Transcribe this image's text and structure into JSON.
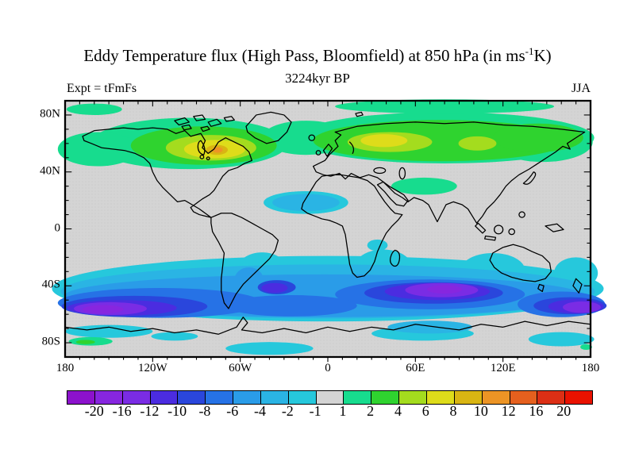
{
  "figure": {
    "title_prefix": "Eddy Temperature flux (High Pass, Bloomfield) at 850 hPa (in ms",
    "title_sup": "-1",
    "title_suffix": "K)",
    "subtitle": "3224kyr BP",
    "experiment_label": "Expt = tFmFs",
    "season_label": "JJA"
  },
  "axes": {
    "lat_labels": [
      "80N",
      "40N",
      "0",
      "40S",
      "80S"
    ],
    "lon_labels": [
      "180",
      "120W",
      "60W",
      "0",
      "60E",
      "120E",
      "180"
    ]
  },
  "colorbar": {
    "tick_labels": [
      "-20",
      "-16",
      "-12",
      "-10",
      "-8",
      "-6",
      "-4",
      "-2",
      "-1",
      "1",
      "2",
      "4",
      "6",
      "8",
      "10",
      "12",
      "16",
      "20"
    ],
    "colors": [
      "#8c12cc",
      "#8726df",
      "#7a2ce4",
      "#4b2ce0",
      "#2a46dc",
      "#2672e6",
      "#2a9ce8",
      "#2ab4e4",
      "#26c8dc",
      "#d4d4d4",
      "#17dc8e",
      "#2fd32f",
      "#a4dc1e",
      "#dedc1a",
      "#d9b513",
      "#ec9425",
      "#e5601e",
      "#dc2f15",
      "#e91200"
    ],
    "background_gray": "#d4d4d4"
  },
  "chart_data": {
    "type": "heatmap",
    "subtype": "filled_contour_world_map",
    "title": "Eddy Temperature flux (High Pass, Bloomfield) at 850 hPa (in ms-1 K)",
    "subtitle": "3224kyr BP",
    "experiment": "Expt = tFmFs",
    "season": "JJA",
    "variable": "high-pass (Bloomfield) eddy temperature flux at 850 hPa",
    "units": "m s-1 K",
    "projection": "equirectangular",
    "lon_range": [
      -180,
      180
    ],
    "lat_range": [
      -90,
      90
    ],
    "lon_ticks_deg": [
      -180,
      -120,
      -60,
      0,
      60,
      120,
      180
    ],
    "lat_ticks_deg": [
      80,
      40,
      0,
      -40,
      -80
    ],
    "minor_tick_interval_deg": 10,
    "contour_levels": [
      -20,
      -16,
      -12,
      -10,
      -8,
      -6,
      -4,
      -2,
      -1,
      1,
      2,
      4,
      6,
      8,
      10,
      12,
      16,
      20
    ],
    "legend_position": "bottom horizontal colorbar",
    "grid": false,
    "features": [
      {
        "region": "NH mid/high latitudes 45-80N (N America, N Atlantic, Eurasia)",
        "sign": "positive",
        "range_value": "+1 to +10",
        "maxima": [
          {
            "lon": -75,
            "lat": 55,
            "value": "+8 to +10 (orange core, E Canada)"
          },
          {
            "lon": 55,
            "lat": 55,
            "value": "+6 to +8 (yellow core, W Russia)"
          },
          {
            "lon": 105,
            "lat": 55,
            "value": "+4 to +6 (C Siberia)"
          }
        ]
      },
      {
        "region": "Tropics 30S-35N",
        "sign": "near zero",
        "range_value": "-1 to +1 (gray)"
      },
      {
        "region": "West Africa / tropical N Atlantic ~10-25N",
        "sign": "negative",
        "range_value": "-2 to -4"
      },
      {
        "region": "E Mediterranean / Caspian ~35-45N",
        "sign": "positive",
        "range_value": "+1 to +2"
      },
      {
        "region": "SH storm track 25-65S (circumpolar band)",
        "sign": "negative",
        "range_value": "-2 to -20",
        "minima": [
          {
            "lon": -145,
            "lat": -52,
            "value": "-16 to -20 (S Pacific purple core)"
          },
          {
            "lon": 60,
            "lat": -47,
            "value": "-16 to -20 (S Indian Ocean purple core)"
          },
          {
            "lon": 178,
            "lat": -57,
            "value": "-12 to -16 (near Date Line)"
          },
          {
            "lon": -40,
            "lat": -47,
            "value": "-10 to -12 (S Atlantic)"
          }
        ]
      },
      {
        "region": "Antarctic coastal zone 65-85S",
        "sign": "weak mixed",
        "range_value": "-4 to +2 patches"
      }
    ]
  }
}
